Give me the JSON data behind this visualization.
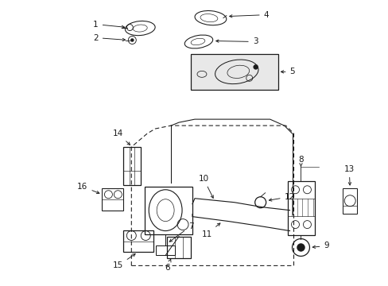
{
  "bg_color": "#ffffff",
  "lc": "#1a1a1a",
  "lw": 0.9,
  "fig_w": 4.89,
  "fig_h": 3.6,
  "dpi": 100
}
